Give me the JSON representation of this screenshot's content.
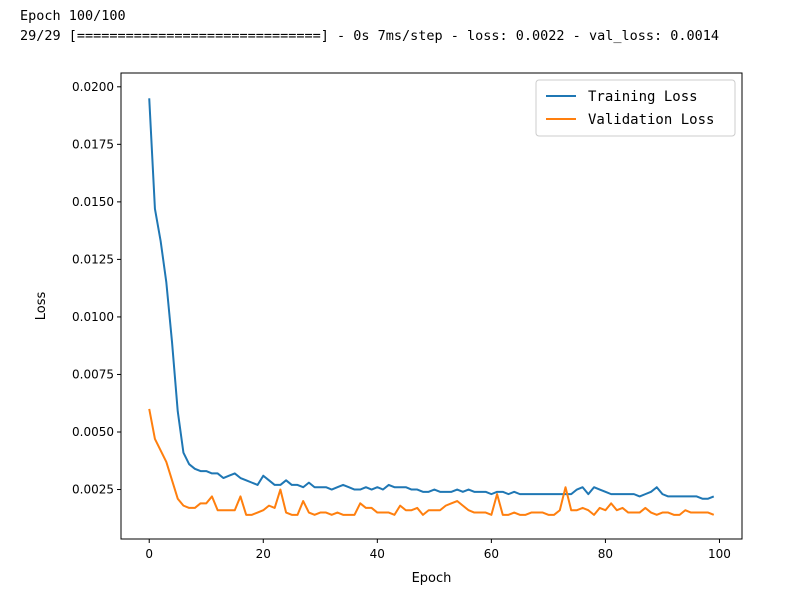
{
  "console": {
    "line1": "Epoch 100/100",
    "line2": "29/29 [==============================] - 0s 7ms/step - loss: 0.0022 - val_loss: 0.0014"
  },
  "chart_data": {
    "type": "line",
    "title": "",
    "xlabel": "Epoch",
    "ylabel": "Loss",
    "xlim": [
      -4.95,
      103.95
    ],
    "ylim": [
      0.00035,
      0.0206
    ],
    "xticks": [
      0,
      20,
      40,
      60,
      80,
      100
    ],
    "yticks": [
      0.0025,
      0.005,
      0.0075,
      0.01,
      0.0125,
      0.015,
      0.0175,
      0.02
    ],
    "ytick_labels": [
      "0.0025",
      "0.0050",
      "0.0075",
      "0.0100",
      "0.0125",
      "0.0150",
      "0.0175",
      "0.0200"
    ],
    "grid": false,
    "legend": "upper right",
    "series": [
      {
        "name": "Training Loss",
        "color": "#1f77b4",
        "values": [
          0.0195,
          0.0147,
          0.0133,
          0.0115,
          0.0089,
          0.0059,
          0.0041,
          0.0036,
          0.0034,
          0.0033,
          0.0033,
          0.0032,
          0.0032,
          0.003,
          0.0031,
          0.0032,
          0.003,
          0.0029,
          0.0028,
          0.0027,
          0.0031,
          0.0029,
          0.0027,
          0.0027,
          0.0029,
          0.0027,
          0.0027,
          0.0026,
          0.0028,
          0.0026,
          0.0026,
          0.0026,
          0.0025,
          0.0026,
          0.0027,
          0.0026,
          0.0025,
          0.0025,
          0.0026,
          0.0025,
          0.0026,
          0.0025,
          0.0027,
          0.0026,
          0.0026,
          0.0026,
          0.0025,
          0.0025,
          0.0024,
          0.0024,
          0.0025,
          0.0024,
          0.0024,
          0.0024,
          0.0025,
          0.0024,
          0.0025,
          0.0024,
          0.0024,
          0.0024,
          0.0023,
          0.0024,
          0.0024,
          0.0023,
          0.0024,
          0.0023,
          0.0023,
          0.0023,
          0.0023,
          0.0023,
          0.0023,
          0.0023,
          0.0023,
          0.0023,
          0.0023,
          0.0025,
          0.0026,
          0.0023,
          0.0026,
          0.0025,
          0.0024,
          0.0023,
          0.0023,
          0.0023,
          0.0023,
          0.0023,
          0.0022,
          0.0023,
          0.0024,
          0.0026,
          0.0023,
          0.0022,
          0.0022,
          0.0022,
          0.0022,
          0.0022,
          0.0022,
          0.0021,
          0.0021,
          0.0022
        ]
      },
      {
        "name": "Validation Loss",
        "color": "#ff7f0e",
        "values": [
          0.006,
          0.0047,
          0.0042,
          0.0037,
          0.0029,
          0.0021,
          0.0018,
          0.0017,
          0.0017,
          0.0019,
          0.0019,
          0.0022,
          0.0016,
          0.0016,
          0.0016,
          0.0016,
          0.0022,
          0.0014,
          0.0014,
          0.0015,
          0.0016,
          0.0018,
          0.0017,
          0.0025,
          0.0015,
          0.0014,
          0.0014,
          0.002,
          0.0015,
          0.0014,
          0.0015,
          0.0015,
          0.0014,
          0.0015,
          0.0014,
          0.0014,
          0.0014,
          0.0019,
          0.0017,
          0.0017,
          0.0015,
          0.0015,
          0.0015,
          0.0014,
          0.0018,
          0.0016,
          0.0016,
          0.0017,
          0.0014,
          0.0016,
          0.0016,
          0.0016,
          0.0018,
          0.0019,
          0.002,
          0.0018,
          0.0016,
          0.0015,
          0.0015,
          0.0015,
          0.0014,
          0.0023,
          0.0014,
          0.0014,
          0.0015,
          0.0014,
          0.0014,
          0.0015,
          0.0015,
          0.0015,
          0.0014,
          0.0014,
          0.0016,
          0.0026,
          0.0016,
          0.0016,
          0.0017,
          0.0016,
          0.0014,
          0.0017,
          0.0016,
          0.0019,
          0.0016,
          0.0017,
          0.0015,
          0.0015,
          0.0015,
          0.0017,
          0.0015,
          0.0014,
          0.0015,
          0.0015,
          0.0014,
          0.0014,
          0.0016,
          0.0015,
          0.0015,
          0.0015,
          0.0015,
          0.0014
        ]
      }
    ]
  }
}
